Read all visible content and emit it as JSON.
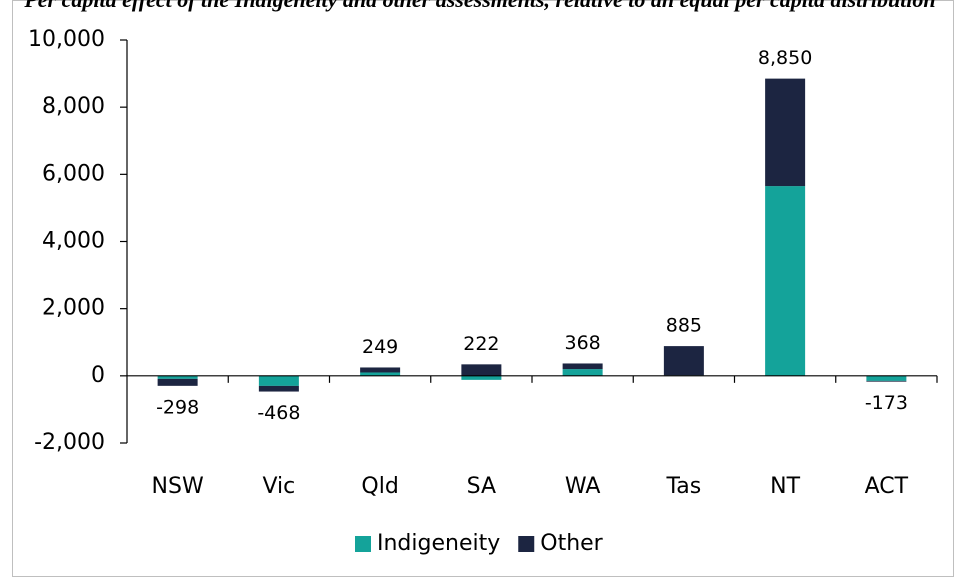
{
  "chart_data": {
    "type": "stacked_bar",
    "title": "Per capita effect of the Indigeneity and other assessments, relative to an equal per capita distribution",
    "categories": [
      "NSW",
      "Vic",
      "Qld",
      "SA",
      "WA",
      "Tas",
      "NT",
      "ACT"
    ],
    "series": [
      {
        "name": "Indigeneity",
        "color": "#14a39a",
        "values": [
          -90,
          -300,
          100,
          -120,
          200,
          15,
          5650,
          -150
        ]
      },
      {
        "name": "Other",
        "color": "#1c2541",
        "values": [
          -208,
          -168,
          149,
          342,
          168,
          870,
          3200,
          -23
        ]
      }
    ],
    "totals": [
      -298,
      -468,
      249,
      222,
      368,
      885,
      8850,
      -173
    ],
    "total_labels": [
      "-298",
      "-468",
      "249",
      "222",
      "368",
      "885",
      "8,850",
      "-173"
    ],
    "ylim": [
      -2000,
      10000
    ],
    "yticks": [
      {
        "value": -2000,
        "label": "-2,000"
      },
      0,
      {
        "value": 2000,
        "label": "2,000"
      },
      {
        "value": 4000,
        "label": "4,000"
      },
      {
        "value": 6000,
        "label": "6,000"
      },
      {
        "value": 8000,
        "label": "8,000"
      },
      {
        "value": 10000,
        "label": "10,000"
      }
    ],
    "grid": false,
    "legend": "bottom"
  }
}
